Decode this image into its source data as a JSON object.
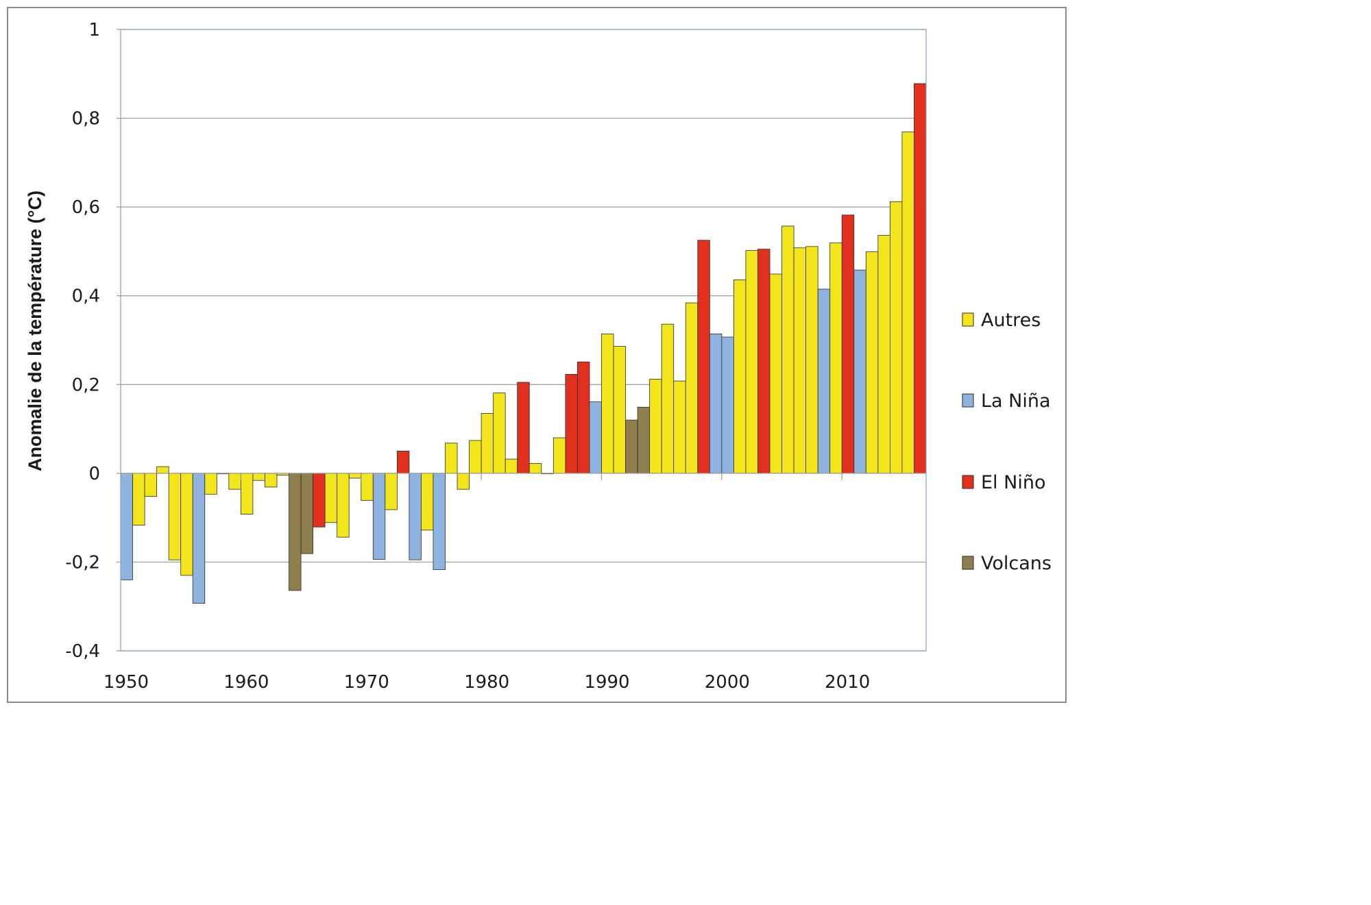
{
  "chart_data": {
    "type": "bar",
    "ylabel": "Anomalie de la température (°C)",
    "xlabel": "",
    "title": "",
    "ylim": [
      -0.4,
      1
    ],
    "yticks": [
      1,
      0.8,
      0.6,
      0.4,
      0.2,
      0,
      -0.2,
      -0.4
    ],
    "ytick_labels": [
      "1",
      "0,8",
      "0,6",
      "0,4",
      "0,2",
      "0",
      "-0,2",
      "-0,4"
    ],
    "xticks": [
      1950,
      1960,
      1970,
      1980,
      1990,
      2000,
      2010
    ],
    "xtick_labels": [
      "1950",
      "1960",
      "1970",
      "1980",
      "1990",
      "2000",
      "2010"
    ],
    "grid": "horizontal",
    "legend_position": "right",
    "categories_colors": {
      "Autres": "#f2e51c",
      "La Niña": "#8eb3df",
      "El Niño": "#e1301e",
      "Volcans": "#8e7f4c"
    },
    "legend": [
      "Autres",
      "La Niña",
      "El Niño",
      "Volcans"
    ],
    "years": [
      1950,
      1951,
      1952,
      1953,
      1954,
      1955,
      1956,
      1957,
      1958,
      1959,
      1960,
      1961,
      1962,
      1963,
      1964,
      1965,
      1966,
      1967,
      1968,
      1969,
      1970,
      1971,
      1972,
      1973,
      1974,
      1975,
      1976,
      1977,
      1978,
      1979,
      1980,
      1981,
      1982,
      1983,
      1984,
      1985,
      1986,
      1987,
      1988,
      1989,
      1990,
      1991,
      1992,
      1993,
      1994,
      1995,
      1996,
      1997,
      1998,
      1999,
      2000,
      2001,
      2002,
      2003,
      2004,
      2005,
      2006,
      2007,
      2008,
      2009,
      2010,
      2011,
      2012,
      2013,
      2014,
      2015,
      2016
    ],
    "values": [
      -0.24,
      -0.117,
      -0.052,
      0.015,
      -0.195,
      -0.23,
      -0.293,
      -0.047,
      0.0,
      -0.036,
      -0.092,
      -0.016,
      -0.031,
      -0.004,
      -0.264,
      -0.181,
      -0.121,
      -0.111,
      -0.144,
      -0.011,
      -0.061,
      -0.194,
      -0.082,
      0.05,
      -0.195,
      -0.128,
      -0.217,
      0.068,
      -0.036,
      0.074,
      0.135,
      0.181,
      0.032,
      0.205,
      0.022,
      -0.001,
      0.08,
      0.223,
      0.251,
      0.161,
      0.314,
      0.286,
      0.12,
      0.149,
      0.212,
      0.336,
      0.208,
      0.384,
      0.525,
      0.314,
      0.307,
      0.436,
      0.502,
      0.505,
      0.449,
      0.557,
      0.508,
      0.511,
      0.415,
      0.519,
      0.582,
      0.458,
      0.499,
      0.536,
      0.612,
      0.769,
      0.878
    ],
    "categories": [
      "La Niña",
      "Autres",
      "Autres",
      "Autres",
      "Autres",
      "Autres",
      "La Niña",
      "Autres",
      "Autres",
      "Autres",
      "Autres",
      "Autres",
      "Autres",
      "Autres",
      "Volcans",
      "Volcans",
      "El Niño",
      "Autres",
      "Autres",
      "Autres",
      "Autres",
      "La Niña",
      "Autres",
      "El Niño",
      "La Niña",
      "Autres",
      "La Niña",
      "Autres",
      "Autres",
      "Autres",
      "Autres",
      "Autres",
      "Autres",
      "El Niño",
      "Autres",
      "Autres",
      "Autres",
      "El Niño",
      "El Niño",
      "La Niña",
      "Autres",
      "Autres",
      "Volcans",
      "Volcans",
      "Autres",
      "Autres",
      "Autres",
      "Autres",
      "El Niño",
      "La Niña",
      "La Niña",
      "Autres",
      "Autres",
      "El Niño",
      "Autres",
      "Autres",
      "Autres",
      "Autres",
      "La Niña",
      "Autres",
      "El Niño",
      "La Niña",
      "Autres",
      "Autres",
      "Autres",
      "Autres",
      "El Niño"
    ]
  }
}
